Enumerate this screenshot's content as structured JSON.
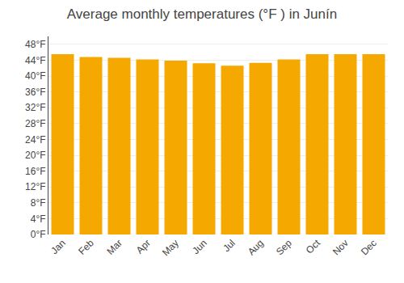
{
  "chart_data": {
    "type": "bar",
    "title": "Average monthly temperatures (°F ) in Junín",
    "categories": [
      "Jan",
      "Feb",
      "Mar",
      "Apr",
      "May",
      "Jun",
      "Jul",
      "Aug",
      "Sep",
      "Oct",
      "Nov",
      "Dec"
    ],
    "values": [
      45.5,
      44.8,
      44.6,
      44.2,
      43.9,
      43.2,
      42.6,
      43.3,
      44.2,
      45.5,
      45.5,
      45.5
    ],
    "color": "#F5A800",
    "ylim": [
      0,
      50
    ],
    "yticks": [
      {
        "value": 0,
        "label": "0°F"
      },
      {
        "value": 4,
        "label": "4°F"
      },
      {
        "value": 8,
        "label": "8°F"
      },
      {
        "value": 12,
        "label": "12°F"
      },
      {
        "value": 16,
        "label": "16°F"
      },
      {
        "value": 20,
        "label": "20°F"
      },
      {
        "value": 24,
        "label": "24°F"
      },
      {
        "value": 28,
        "label": "28°F"
      },
      {
        "value": 32,
        "label": "32°F"
      },
      {
        "value": 36,
        "label": "36°F"
      },
      {
        "value": 40,
        "label": "40°F"
      },
      {
        "value": 44,
        "label": "44°F"
      },
      {
        "value": 48,
        "label": "48°F"
      }
    ],
    "grid": true
  }
}
